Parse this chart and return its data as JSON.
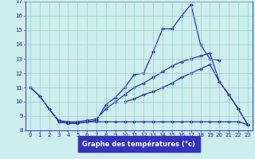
{
  "x": [
    0,
    1,
    2,
    3,
    4,
    5,
    6,
    7,
    8,
    9,
    10,
    11,
    12,
    13,
    14,
    15,
    16,
    17,
    18,
    19,
    20,
    21,
    22,
    23
  ],
  "y_main": [
    11.0,
    10.4,
    9.5,
    8.6,
    8.5,
    8.5,
    8.6,
    8.7,
    9.8,
    10.3,
    11.0,
    11.9,
    12.0,
    13.5,
    15.1,
    15.1,
    16.0,
    16.8,
    14.0,
    13.0,
    12.9,
    null,
    null,
    null
  ],
  "y_upper": [
    11.0,
    10.4,
    9.5,
    8.7,
    8.6,
    8.6,
    8.7,
    8.8,
    9.5,
    10.0,
    10.5,
    11.0,
    11.3,
    11.7,
    12.1,
    12.5,
    12.8,
    13.0,
    13.2,
    13.4,
    11.4,
    10.5,
    9.5,
    8.4
  ],
  "y_lower": [
    null,
    null,
    null,
    8.6,
    8.5,
    8.5,
    8.6,
    8.6,
    8.6,
    8.6,
    8.6,
    8.6,
    8.6,
    8.6,
    8.6,
    8.6,
    8.6,
    8.6,
    8.6,
    8.6,
    8.6,
    8.6,
    8.6,
    8.4
  ],
  "y_mid": [
    null,
    null,
    null,
    null,
    null,
    null,
    null,
    null,
    null,
    null,
    10.0,
    10.2,
    10.5,
    10.7,
    11.0,
    11.3,
    11.7,
    12.0,
    12.3,
    12.6,
    11.4,
    10.5,
    9.5,
    8.4
  ],
  "xlabel": "Graphe des températures (°c)",
  "xlim_min": -0.5,
  "xlim_max": 23.5,
  "ylim_min": 8,
  "ylim_max": 17,
  "yticks": [
    8,
    9,
    10,
    11,
    12,
    13,
    14,
    15,
    16,
    17
  ],
  "xticks": [
    0,
    1,
    2,
    3,
    4,
    5,
    6,
    7,
    8,
    9,
    10,
    11,
    12,
    13,
    14,
    15,
    16,
    17,
    18,
    19,
    20,
    21,
    22,
    23
  ],
  "line_color": "#1a1aaa",
  "bg_color": "#cceeed",
  "xlabel_bg": "#3333bb",
  "grid_color": "#99cccc",
  "tick_fontsize": 5.0,
  "xlabel_fontsize": 6.0,
  "marker": "D",
  "marker_size": 2.0,
  "linewidth": 0.8
}
